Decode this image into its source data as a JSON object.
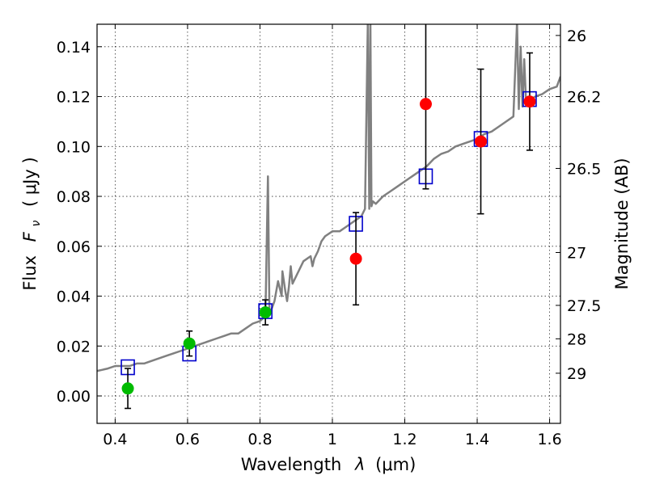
{
  "chart_data": {
    "type": "scatter",
    "xlabel_prefix": "Wavelength",
    "xlabel_symbol": "λ",
    "xlabel_unit": "(μm)",
    "ylabel_prefix": "Flux",
    "ylabel_symbol": "F",
    "ylabel_subscript": "ν",
    "ylabel_unit": "( μJy )",
    "y2label": "Magnitude (AB)",
    "xlim": [
      0.35,
      1.63
    ],
    "ylim": [
      -0.011,
      0.149
    ],
    "grid": true,
    "xticks": [
      {
        "value": 0.4,
        "label": "0.4"
      },
      {
        "value": 0.6,
        "label": "0.6"
      },
      {
        "value": 0.8,
        "label": "0.8"
      },
      {
        "value": 1.0,
        "label": "1"
      },
      {
        "value": 1.2,
        "label": "1.2"
      },
      {
        "value": 1.4,
        "label": "1.4"
      },
      {
        "value": 1.6,
        "label": "1.6"
      }
    ],
    "yticks": [
      {
        "value": 0.0,
        "label": "0.00"
      },
      {
        "value": 0.02,
        "label": "0.02"
      },
      {
        "value": 0.04,
        "label": "0.04"
      },
      {
        "value": 0.06,
        "label": "0.06"
      },
      {
        "value": 0.08,
        "label": "0.08"
      },
      {
        "value": 0.1,
        "label": "0.10"
      },
      {
        "value": 0.12,
        "label": "0.12"
      },
      {
        "value": 0.14,
        "label": "0.14"
      }
    ],
    "y2ticks": [
      {
        "flux": 0.1445,
        "label": "26"
      },
      {
        "flux": 0.12,
        "label": "26.2"
      },
      {
        "flux": 0.0912,
        "label": "26.5"
      },
      {
        "flux": 0.0575,
        "label": "27"
      },
      {
        "flux": 0.0363,
        "label": "27.5"
      },
      {
        "flux": 0.0229,
        "label": "28"
      },
      {
        "flux": 0.0091,
        "label": "29"
      }
    ],
    "colors": {
      "spectrum": "#808080",
      "model_box": "#0000cc",
      "detected": "#00bb00",
      "low_sn": "#ff0000",
      "errorbar": "#000000"
    },
    "series": [
      {
        "type": "line",
        "role": "spectrum",
        "x": [
          0.35,
          0.38,
          0.4,
          0.42,
          0.44,
          0.46,
          0.48,
          0.5,
          0.52,
          0.54,
          0.56,
          0.58,
          0.6,
          0.62,
          0.64,
          0.66,
          0.68,
          0.7,
          0.72,
          0.74,
          0.76,
          0.78,
          0.8,
          0.815,
          0.822,
          0.826,
          0.83,
          0.84,
          0.85,
          0.86,
          0.862,
          0.87,
          0.875,
          0.88,
          0.885,
          0.89,
          0.9,
          0.92,
          0.94,
          0.945,
          0.95,
          0.96,
          0.97,
          0.98,
          1.0,
          1.02,
          1.04,
          1.06,
          1.08,
          1.09,
          1.098,
          1.102,
          1.105,
          1.108,
          1.112,
          1.12,
          1.14,
          1.16,
          1.18,
          1.2,
          1.22,
          1.24,
          1.26,
          1.28,
          1.3,
          1.32,
          1.34,
          1.36,
          1.38,
          1.4,
          1.42,
          1.44,
          1.46,
          1.48,
          1.5,
          1.51,
          1.515,
          1.52,
          1.525,
          1.53,
          1.535,
          1.54,
          1.56,
          1.58,
          1.6,
          1.62,
          1.63
        ],
        "y": [
          0.01,
          0.011,
          0.012,
          0.012,
          0.012,
          0.013,
          0.013,
          0.014,
          0.015,
          0.016,
          0.017,
          0.018,
          0.019,
          0.02,
          0.021,
          0.022,
          0.023,
          0.024,
          0.025,
          0.025,
          0.027,
          0.029,
          0.03,
          0.032,
          0.088,
          0.035,
          0.034,
          0.038,
          0.046,
          0.04,
          0.05,
          0.042,
          0.038,
          0.044,
          0.052,
          0.045,
          0.048,
          0.054,
          0.056,
          0.052,
          0.055,
          0.058,
          0.062,
          0.064,
          0.066,
          0.066,
          0.068,
          0.07,
          0.072,
          0.075,
          0.15,
          0.075,
          0.15,
          0.076,
          0.078,
          0.077,
          0.08,
          0.082,
          0.084,
          0.086,
          0.088,
          0.09,
          0.092,
          0.095,
          0.097,
          0.098,
          0.1,
          0.101,
          0.102,
          0.103,
          0.105,
          0.106,
          0.108,
          0.11,
          0.112,
          0.15,
          0.115,
          0.14,
          0.116,
          0.135,
          0.117,
          0.118,
          0.12,
          0.121,
          0.123,
          0.124,
          0.128
        ]
      },
      {
        "type": "scatter",
        "role": "model_box",
        "x": [
          0.435,
          0.605,
          0.815,
          1.065,
          1.258,
          1.41,
          1.545
        ],
        "y": [
          0.0115,
          0.017,
          0.034,
          0.069,
          0.088,
          0.103,
          0.119
        ]
      },
      {
        "type": "scatter",
        "role": "detected",
        "x": [
          0.435,
          0.605,
          0.815
        ],
        "y": [
          0.003,
          0.021,
          0.0335
        ],
        "yerr": [
          0.008,
          0.005,
          0.005
        ]
      },
      {
        "type": "scatter",
        "role": "low_sn",
        "x": [
          1.065,
          1.258,
          1.41,
          1.545
        ],
        "y": [
          0.055,
          0.117,
          0.102,
          0.118
        ],
        "yerr": [
          0.0185,
          0.034,
          0.029,
          0.0195
        ]
      }
    ]
  }
}
